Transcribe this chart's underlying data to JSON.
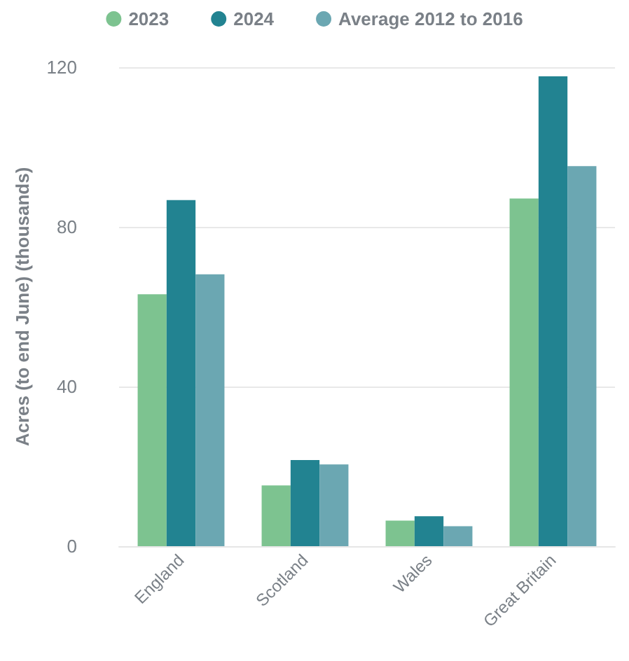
{
  "chart_data": {
    "type": "bar",
    "ylabel": "Acres (to end June) (thousands)",
    "categories": [
      "England",
      "Scotland",
      "Wales",
      "Great Britain"
    ],
    "series": [
      {
        "name": "2023",
        "color": "#7dc390",
        "values": [
          63.1,
          15.2,
          6.4,
          87.1
        ]
      },
      {
        "name": "2024",
        "color": "#228391",
        "values": [
          86.7,
          21.6,
          7.5,
          117.7
        ]
      },
      {
        "name": "Average 2012 to 2016",
        "color": "#6ba7b2",
        "values": [
          68.1,
          20.5,
          5.0,
          95.2
        ]
      }
    ],
    "ylim": [
      0,
      120
    ],
    "yticks": [
      0,
      40,
      80,
      120
    ],
    "grid": "y",
    "legend": "top"
  }
}
